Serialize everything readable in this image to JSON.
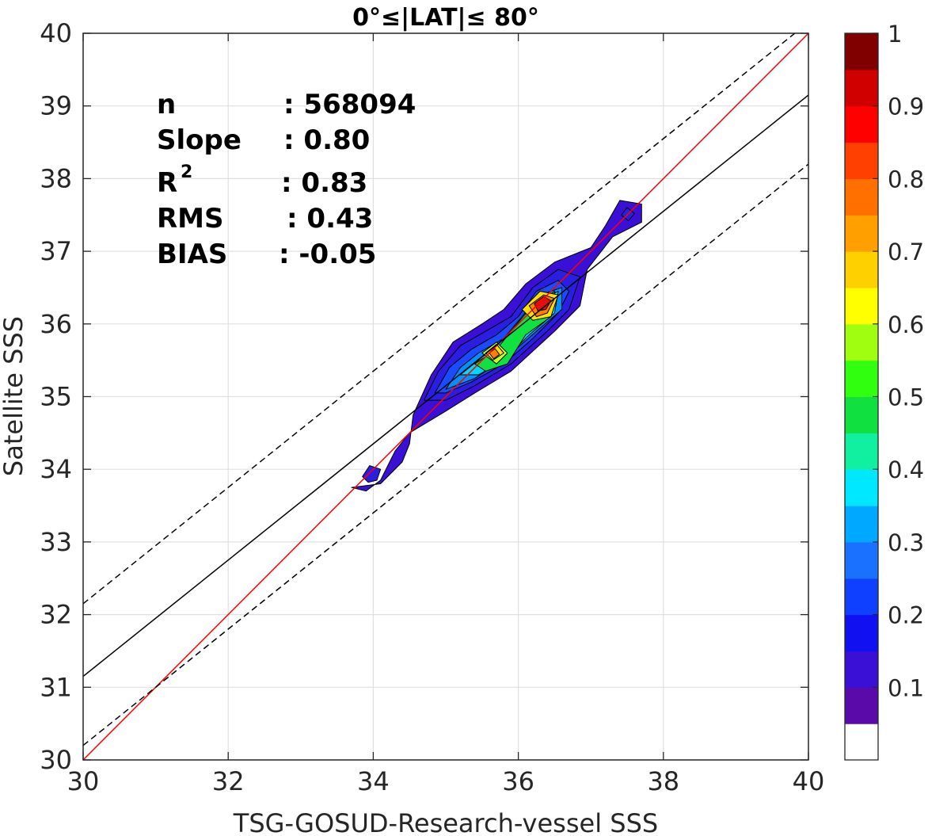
{
  "chart_data": {
    "type": "contour-density",
    "title": "0°≤|LAT|≤ 80°",
    "xlabel": "TSG-GOSUD-Research-vessel SSS",
    "ylabel": "Satellite SSS",
    "xlim": [
      30,
      40
    ],
    "ylim": [
      30,
      40
    ],
    "xticks": [
      30,
      32,
      34,
      36,
      38,
      40
    ],
    "yticks": [
      30,
      31,
      32,
      33,
      34,
      35,
      36,
      37,
      38,
      39,
      40
    ],
    "grid": true,
    "stats": [
      {
        "label": "n",
        "sep": ": 568094"
      },
      {
        "label": "Slope",
        "sep": ": 0.80"
      },
      {
        "label": "R",
        "sup": "2",
        "sep": ": 0.83"
      },
      {
        "label": "RMS",
        "sep": ": 0.43"
      },
      {
        "label": "BIAS",
        "sep": ": -0.05"
      }
    ],
    "lines": {
      "identity": {
        "slope": 1,
        "intercept": 0,
        "color": "#ff0000"
      },
      "regression": {
        "slope": 0.8,
        "intercept": 7.15,
        "color": "#000000"
      },
      "upper_bound": {
        "slope": 0.8,
        "intercept": 8.15,
        "color": "#000000",
        "dash": true
      },
      "lower_bound": {
        "slope": 0.8,
        "intercept": 6.2,
        "color": "#000000",
        "dash": true
      }
    },
    "density_peaks": [
      {
        "x": 36.35,
        "y": 36.3,
        "value": 0.95
      },
      {
        "x": 35.65,
        "y": 35.6,
        "value": 0.72
      },
      {
        "x": 34.0,
        "y": 33.95,
        "value": 0.12
      },
      {
        "x": 37.5,
        "y": 37.5,
        "value": 0.12
      }
    ],
    "contour_levels": [
      {
        "level": 0.05,
        "color": "#3a0fd6",
        "polygon": [
          [
            33.7,
            33.75
          ],
          [
            34.1,
            33.8
          ],
          [
            34.4,
            34.1
          ],
          [
            34.5,
            34.35
          ],
          [
            34.55,
            34.75
          ],
          [
            34.8,
            35.3
          ],
          [
            35.1,
            35.75
          ],
          [
            35.5,
            36.0
          ],
          [
            35.8,
            36.2
          ],
          [
            36.1,
            36.55
          ],
          [
            36.5,
            36.85
          ],
          [
            37.0,
            37.05
          ],
          [
            37.2,
            37.35
          ],
          [
            37.4,
            37.7
          ],
          [
            37.7,
            37.65
          ],
          [
            37.7,
            37.4
          ],
          [
            37.3,
            37.2
          ],
          [
            36.95,
            36.75
          ],
          [
            36.85,
            36.25
          ],
          [
            36.5,
            35.9
          ],
          [
            35.9,
            35.35
          ],
          [
            35.4,
            35.05
          ],
          [
            35.0,
            34.8
          ],
          [
            34.5,
            34.5
          ],
          [
            34.3,
            34.25
          ],
          [
            34.1,
            33.85
          ],
          [
            33.9,
            33.7
          ]
        ]
      },
      {
        "level": 0.1,
        "color": "#2a1fe0",
        "polygon": [
          [
            34.7,
            34.95
          ],
          [
            34.9,
            35.35
          ],
          [
            35.2,
            35.7
          ],
          [
            35.55,
            35.9
          ],
          [
            35.9,
            36.1
          ],
          [
            36.2,
            36.5
          ],
          [
            36.55,
            36.75
          ],
          [
            36.85,
            36.65
          ],
          [
            36.7,
            36.2
          ],
          [
            36.4,
            35.9
          ],
          [
            35.9,
            35.45
          ],
          [
            35.4,
            35.15
          ],
          [
            35.0,
            34.95
          ]
        ]
      },
      {
        "level": 0.2,
        "color": "#1a4cff",
        "polygon": [
          [
            34.85,
            35.05
          ],
          [
            35.05,
            35.4
          ],
          [
            35.35,
            35.65
          ],
          [
            35.7,
            35.85
          ],
          [
            36.0,
            36.1
          ],
          [
            36.25,
            36.45
          ],
          [
            36.55,
            36.6
          ],
          [
            36.7,
            36.45
          ],
          [
            36.55,
            36.15
          ],
          [
            36.2,
            35.8
          ],
          [
            35.8,
            35.45
          ],
          [
            35.35,
            35.2
          ],
          [
            35.0,
            35.05
          ]
        ]
      },
      {
        "level": 0.3,
        "color": "#0090ff",
        "polygon": [
          [
            35.0,
            35.1
          ],
          [
            35.2,
            35.4
          ],
          [
            35.45,
            35.6
          ],
          [
            35.8,
            35.8
          ],
          [
            36.05,
            36.1
          ],
          [
            36.3,
            36.4
          ],
          [
            36.6,
            36.5
          ],
          [
            36.6,
            36.2
          ],
          [
            36.25,
            35.9
          ],
          [
            35.85,
            35.55
          ],
          [
            35.4,
            35.25
          ]
        ]
      },
      {
        "level": 0.4,
        "color": "#00d8ff",
        "polygon": [
          [
            35.2,
            35.3
          ],
          [
            35.45,
            35.5
          ],
          [
            35.75,
            35.75
          ],
          [
            36.05,
            36.05
          ],
          [
            36.25,
            36.3
          ],
          [
            36.55,
            36.45
          ],
          [
            36.5,
            36.15
          ],
          [
            36.15,
            35.85
          ],
          [
            35.8,
            35.5
          ],
          [
            35.45,
            35.3
          ]
        ]
      },
      {
        "level": 0.5,
        "color": "#10e040",
        "polygon": [
          [
            35.4,
            35.45
          ],
          [
            35.7,
            35.65
          ],
          [
            35.9,
            35.9
          ],
          [
            36.15,
            36.2
          ],
          [
            36.5,
            36.45
          ],
          [
            36.45,
            36.1
          ],
          [
            36.1,
            35.85
          ],
          [
            35.85,
            35.45
          ],
          [
            35.55,
            35.35
          ]
        ]
      },
      {
        "level": 0.6,
        "color": "#c8ff20",
        "polygon": [
          [
            35.5,
            35.6
          ],
          [
            35.7,
            35.75
          ],
          [
            35.85,
            35.6
          ],
          [
            35.7,
            35.45
          ]
        ]
      },
      {
        "level": 0.65,
        "color": "#ffe000",
        "polygon": [
          [
            35.55,
            35.6
          ],
          [
            35.7,
            35.72
          ],
          [
            35.8,
            35.6
          ],
          [
            35.65,
            35.5
          ]
        ]
      },
      {
        "level": 0.6,
        "color": "#ffe000",
        "polygon": [
          [
            36.05,
            36.2
          ],
          [
            36.3,
            36.45
          ],
          [
            36.55,
            36.4
          ],
          [
            36.45,
            36.1
          ],
          [
            36.2,
            36.05
          ]
        ]
      },
      {
        "level": 0.75,
        "color": "#ff8000",
        "polygon": [
          [
            36.15,
            36.25
          ],
          [
            36.35,
            36.4
          ],
          [
            36.5,
            36.35
          ],
          [
            36.4,
            36.15
          ],
          [
            36.25,
            36.1
          ]
        ]
      },
      {
        "level": 0.75,
        "color": "#ff8000",
        "polygon": [
          [
            35.6,
            35.6
          ],
          [
            35.68,
            35.66
          ],
          [
            35.74,
            35.58
          ],
          [
            35.66,
            35.52
          ]
        ]
      },
      {
        "level": 0.9,
        "color": "#e01010",
        "polygon": [
          [
            36.22,
            36.28
          ],
          [
            36.35,
            36.38
          ],
          [
            36.45,
            36.32
          ],
          [
            36.38,
            36.2
          ],
          [
            36.27,
            36.18
          ]
        ]
      },
      {
        "level": 0.1,
        "color": "#2a1fe0",
        "polygon": [
          [
            33.85,
            33.9
          ],
          [
            33.95,
            34.05
          ],
          [
            34.1,
            34.0
          ],
          [
            34.05,
            33.85
          ],
          [
            33.93,
            33.82
          ]
        ]
      },
      {
        "level": 0.1,
        "color": "#2a1fe0",
        "polygon": [
          [
            37.42,
            37.5
          ],
          [
            37.5,
            37.6
          ],
          [
            37.6,
            37.52
          ],
          [
            37.52,
            37.42
          ]
        ]
      }
    ],
    "colorbar": {
      "ticks": [
        0.1,
        0.2,
        0.3,
        0.4,
        0.5,
        0.6,
        0.7,
        0.8,
        0.9,
        1
      ],
      "tick_labels": [
        "0.1",
        "0.2",
        "0.3",
        "0.4",
        "0.5",
        "0.6",
        "0.7",
        "0.8",
        "0.9",
        "1"
      ],
      "colors": [
        "#ffffff",
        "#5a0aa8",
        "#3a0fd6",
        "#1010f0",
        "#1040ff",
        "#1a70ff",
        "#00a8ff",
        "#00e8ff",
        "#10f0a0",
        "#10e040",
        "#30ff10",
        "#a0ff10",
        "#ffff00",
        "#ffd000",
        "#ffa000",
        "#ff7000",
        "#ff4000",
        "#ff0000",
        "#d00000",
        "#800000"
      ]
    }
  }
}
